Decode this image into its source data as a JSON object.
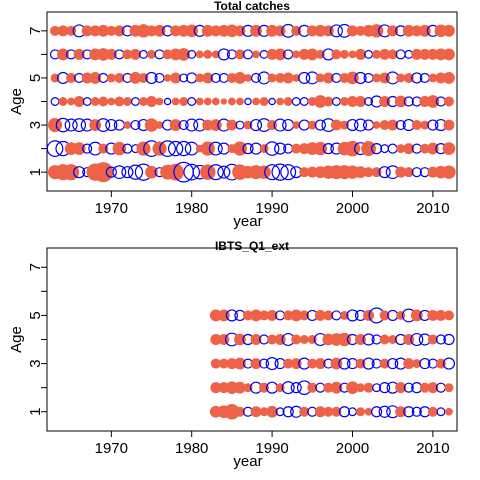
{
  "chart_data": [
    {
      "type": "scatter",
      "title": "Total catches",
      "xlabel": "year",
      "ylabel": "Age",
      "xlim": [
        1962,
        2013
      ],
      "ylim": [
        0.2,
        7.8
      ],
      "x_ticks": [
        1970,
        1980,
        1990,
        2000,
        2010
      ],
      "y_ticks": [
        1,
        3,
        5,
        7
      ],
      "y_minor_ticks": [
        2,
        4,
        6
      ],
      "years": [
        1963,
        2012
      ],
      "ages": [
        1,
        2,
        3,
        4,
        5,
        6,
        7
      ],
      "legend": "none",
      "grid": false,
      "series": [
        {
          "marker": "filled circle",
          "meaning": "positive residual",
          "color": "#EE6347"
        },
        {
          "marker": "open circle",
          "meaning": "negative residual",
          "color": "#0000EE"
        }
      ],
      "residuals": {
        "1": [
          1.0,
          1.3,
          1.3,
          -0.6,
          -0.4,
          1.5,
          2.0,
          -0.5,
          -0.8,
          -0.6,
          -1.0,
          -1.3,
          0.8,
          -0.4,
          1.1,
          1.4,
          -1.9,
          -1.2,
          -0.9,
          1.2,
          -1.1,
          -0.7,
          -1.2,
          1.2,
          0.8,
          1.0,
          0.9,
          -1.1,
          -1.3,
          -1.1,
          -0.6,
          0.5,
          0.6,
          0.7,
          0.9,
          1.0,
          1.0,
          0.9,
          0.7,
          0.5,
          0.5,
          -0.6,
          -0.8,
          0.6,
          0.5,
          -0.4,
          -0.4,
          0.6,
          0.8,
          0.9
        ],
        "2": [
          -1.2,
          -1.0,
          0.8,
          0.8,
          -0.4,
          -0.8,
          0.5,
          -0.6,
          0.9,
          -0.4,
          -0.3,
          1.0,
          -1.2,
          1.0,
          -1.2,
          -1.0,
          -1.0,
          -0.8,
          0.3,
          1.0,
          -0.8,
          -0.6,
          0.4,
          1.0,
          -0.5,
          -0.6,
          0.4,
          -0.9,
          -0.6,
          -0.4,
          0.5,
          0.6,
          0.8,
          0.9,
          -0.5,
          -0.6,
          0.9,
          1.2,
          -0.7,
          1.1,
          -0.5,
          -0.3,
          -0.4,
          0.4,
          0.6,
          -0.4,
          0.5,
          0.7,
          -0.5,
          0.8
        ],
        "3": [
          1.0,
          -0.9,
          -0.7,
          -0.8,
          -0.7,
          0.7,
          -0.8,
          -0.6,
          -0.5,
          0.3,
          -0.4,
          -0.6,
          0.9,
          0.3,
          -0.5,
          0.7,
          -0.4,
          -0.7,
          -0.7,
          0.6,
          0.7,
          -0.7,
          0.6,
          -0.3,
          0.4,
          -0.6,
          -0.8,
          0.5,
          -0.7,
          -0.6,
          0.3,
          -0.5,
          0.4,
          -0.5,
          -0.8,
          0.6,
          0.4,
          -0.6,
          -0.7,
          -0.5,
          0.3,
          0.5,
          0.6,
          -0.4,
          -0.6,
          0.5,
          0.4,
          -0.5,
          -0.6,
          0.6
        ],
        "4": [
          -0.3,
          0.4,
          0.3,
          0.6,
          -0.3,
          0.4,
          0.5,
          0.3,
          0.5,
          0.4,
          -0.3,
          0.4,
          0.6,
          0.3,
          -0.2,
          0.3,
          0.4,
          -0.3,
          0.3,
          0.3,
          0.3,
          0.2,
          0.3,
          0.3,
          -0.2,
          0.3,
          0.4,
          -0.2,
          0.3,
          0.4,
          -0.3,
          -0.3,
          0.4,
          0.8,
          0.5,
          -0.3,
          0.4,
          0.6,
          0.6,
          -0.3,
          -0.6,
          0.6,
          -0.5,
          0.7,
          -0.4,
          -0.4,
          0.6,
          0.8,
          -0.4,
          0.5
        ],
        "5": [
          0.4,
          -0.6,
          0.5,
          -0.4,
          0.6,
          0.7,
          -0.4,
          0.4,
          0.5,
          -0.4,
          0.7,
          0.5,
          -0.6,
          -0.4,
          0.3,
          0.6,
          -0.3,
          -0.5,
          0.4,
          0.6,
          -0.4,
          -0.4,
          0.5,
          0.7,
          0.3,
          -0.4,
          -0.7,
          0.4,
          0.5,
          0.6,
          0.3,
          -0.6,
          -0.7,
          0.4,
          0.6,
          -0.4,
          0.5,
          0.8,
          -0.6,
          -0.4,
          0.4,
          0.6,
          -0.7,
          0.4,
          0.5,
          -0.5,
          -0.4,
          0.4,
          0.6,
          0.7
        ],
        "6": [
          -0.4,
          0.7,
          -0.4,
          0.6,
          -0.4,
          0.7,
          0.8,
          0.6,
          -0.4,
          0.5,
          0.6,
          -0.3,
          0.4,
          -0.4,
          0.5,
          0.7,
          0.8,
          -0.3,
          0.3,
          0.4,
          0.3,
          -0.6,
          -0.4,
          0.5,
          -0.4,
          0.3,
          -0.3,
          0.6,
          0.7,
          -0.4,
          0.3,
          0.6,
          0.7,
          0.4,
          -0.6,
          0.5,
          0.4,
          0.3,
          0.6,
          -0.3,
          0.4,
          0.6,
          0.5,
          -0.4,
          -0.3,
          0.6,
          0.6,
          0.6,
          0.7,
          0.7
        ],
        "7": [
          0.5,
          0.6,
          0.5,
          -0.7,
          0.6,
          0.6,
          0.7,
          0.5,
          0.6,
          -0.5,
          0.7,
          0.9,
          0.6,
          0.7,
          -0.5,
          0.6,
          0.7,
          0.8,
          -0.6,
          0.7,
          0.6,
          0.7,
          0.8,
          0.6,
          -0.6,
          0.7,
          -0.6,
          0.7,
          0.6,
          -0.8,
          0.5,
          -0.6,
          0.6,
          0.7,
          0.6,
          -0.7,
          -0.8,
          0.6,
          0.5,
          0.7,
          0.9,
          -0.7,
          0.6,
          -0.5,
          0.7,
          0.6,
          0.7,
          -0.6,
          0.8,
          0.7
        ]
      }
    },
    {
      "type": "scatter",
      "title": "IBTS_Q1_ext",
      "xlabel": "year",
      "ylabel": "Age",
      "xlim": [
        1962,
        2013
      ],
      "ylim": [
        0.2,
        7.8
      ],
      "x_ticks": [
        1970,
        1980,
        1990,
        2000,
        2010
      ],
      "y_ticks": [
        1,
        3,
        5,
        7
      ],
      "y_minor_ticks": [
        2,
        4,
        6
      ],
      "years": [
        1983,
        2012
      ],
      "ages": [
        1,
        2,
        3,
        4,
        5
      ],
      "legend": "none",
      "grid": false,
      "series": [
        {
          "marker": "filled circle",
          "meaning": "positive residual",
          "color": "#EE6347"
        },
        {
          "marker": "open circle",
          "meaning": "negative residual",
          "color": "#0000EE"
        }
      ],
      "residuals": {
        "1": [
          0.7,
          0.8,
          1.2,
          0.5,
          -0.4,
          0.6,
          0.4,
          0.7,
          -0.3,
          -0.5,
          -0.6,
          0.5,
          -0.4,
          0.6,
          0.5,
          0.5,
          -0.5,
          -0.3,
          0.4,
          0.3,
          -0.5,
          -0.6,
          -0.7,
          0.6,
          -0.5,
          -0.4,
          -0.5,
          0.5,
          -0.3,
          0.3
        ],
        "2": [
          0.6,
          0.6,
          0.8,
          0.7,
          0.4,
          -0.6,
          0.5,
          -0.6,
          0.4,
          -0.7,
          -0.5,
          -0.9,
          0.5,
          -0.4,
          0.5,
          0.7,
          -0.4,
          0.8,
          0.4,
          0.5,
          -0.3,
          -0.5,
          -0.6,
          0.6,
          -0.4,
          -0.5,
          0.5,
          0.6,
          -0.4,
          0.4
        ],
        "3": [
          0.5,
          0.5,
          0.6,
          0.7,
          -0.4,
          0.6,
          -0.4,
          -0.7,
          -0.5,
          0.5,
          0.6,
          -0.6,
          0.5,
          0.6,
          -0.4,
          0.7,
          -0.6,
          -0.5,
          0.5,
          -0.6,
          -0.4,
          0.5,
          -0.5,
          -0.6,
          0.6,
          0.4,
          -0.5,
          -0.4,
          0.5,
          -0.6
        ],
        "4": [
          0.6,
          0.6,
          -0.8,
          0.7,
          -0.5,
          0.6,
          -0.4,
          0.5,
          0.6,
          -0.7,
          0.5,
          0.4,
          0.4,
          -0.7,
          0.7,
          0.8,
          0.9,
          -0.5,
          0.6,
          -0.6,
          -0.4,
          0.5,
          0.4,
          -0.5,
          0.6,
          -0.7,
          -0.6,
          0.5,
          -0.4,
          -0.5
        ],
        "5": [
          0.7,
          0.7,
          -0.6,
          -0.5,
          0.5,
          0.7,
          0.5,
          0.6,
          -0.4,
          0.5,
          0.7,
          0.5,
          -0.5,
          0.6,
          0.5,
          -0.4,
          0.4,
          -0.6,
          -0.5,
          0.6,
          -1.1,
          0.5,
          -0.5,
          0.4,
          -0.8,
          0.7,
          -0.5,
          0.6,
          0.6,
          0.5
        ]
      }
    }
  ]
}
